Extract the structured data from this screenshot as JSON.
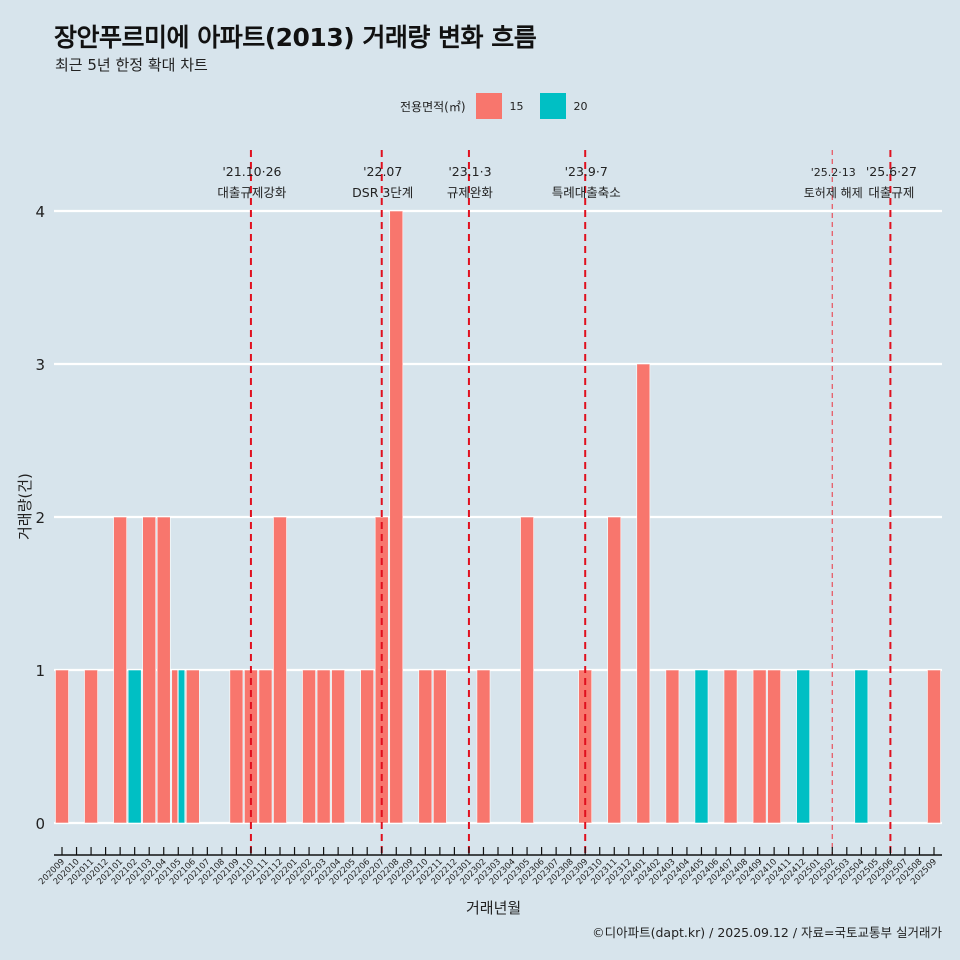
{
  "header": {
    "title": "장안푸르미에 아파트(2013) 거래량 변화 흐름",
    "subtitle": "최근 5년 한정 확대 차트"
  },
  "legend": {
    "title": "전용면적(㎡)",
    "items": [
      {
        "label": "15",
        "color": "#f8766d"
      },
      {
        "label": "20",
        "color": "#00bfc4"
      }
    ]
  },
  "caption": "©디아파트(dapt.kr) / 2025.09.12 / 자료=국토교통부 실거래가",
  "chart_data": {
    "type": "bar",
    "title": "장안푸르미에 아파트(2013) 거래량 변화 흐름",
    "subtitle": "최근 5년 한정 확대 차트",
    "xlabel": "거래년월",
    "ylabel": "거래량(건)",
    "ylim": [
      0,
      4
    ],
    "yticks": [
      0,
      1,
      2,
      3,
      4
    ],
    "grid": true,
    "legend_position": "top",
    "categories": [
      "202009",
      "202010",
      "202011",
      "202012",
      "202101",
      "202102",
      "202103",
      "202104",
      "202105",
      "202106",
      "202107",
      "202108",
      "202109",
      "202110",
      "202111",
      "202112",
      "202201",
      "202202",
      "202203",
      "202204",
      "202205",
      "202206",
      "202207",
      "202208",
      "202209",
      "202210",
      "202211",
      "202212",
      "202301",
      "202302",
      "202303",
      "202304",
      "202305",
      "202306",
      "202307",
      "202308",
      "202309",
      "202310",
      "202311",
      "202312",
      "202401",
      "202402",
      "202403",
      "202404",
      "202405",
      "202406",
      "202407",
      "202408",
      "202409",
      "202410",
      "202411",
      "202412",
      "202501",
      "202502",
      "202503",
      "202504",
      "202505",
      "202506",
      "202507",
      "202508",
      "202509"
    ],
    "series": [
      {
        "name": "15",
        "color": "#f8766d",
        "values": [
          1,
          0,
          1,
          0,
          2,
          0,
          2,
          2,
          1,
          1,
          0,
          0,
          1,
          1,
          1,
          2,
          0,
          1,
          1,
          1,
          0,
          1,
          2,
          4,
          0,
          1,
          1,
          0,
          0,
          1,
          0,
          0,
          2,
          0,
          0,
          0,
          1,
          0,
          2,
          0,
          3,
          0,
          1,
          0,
          0,
          0,
          1,
          0,
          1,
          1,
          0,
          0,
          0,
          0,
          0,
          0,
          0,
          0,
          0,
          0,
          1
        ]
      },
      {
        "name": "20",
        "color": "#00bfc4",
        "values": [
          0,
          0,
          0,
          0,
          0,
          1,
          0,
          0,
          1,
          0,
          0,
          0,
          0,
          0,
          0,
          0,
          0,
          0,
          0,
          0,
          0,
          0,
          0,
          0,
          0,
          0,
          0,
          0,
          0,
          0,
          0,
          0,
          0,
          0,
          0,
          0,
          0,
          0,
          0,
          0,
          0,
          0,
          0,
          0,
          1,
          0,
          0,
          0,
          0,
          0,
          0,
          1,
          0,
          0,
          0,
          1,
          0,
          0,
          0,
          0,
          0
        ]
      }
    ],
    "annotations": [
      {
        "month": "202110",
        "date": "'21.10·26",
        "label": "대출규제강화",
        "style": "bold"
      },
      {
        "month": "202207",
        "date": "'22.07",
        "label": "DSR 3단계",
        "style": "bold"
      },
      {
        "month": "202301",
        "date": "'23.1·3",
        "label": "규제완화",
        "style": "bold"
      },
      {
        "month": "202309",
        "date": "'23.9·7",
        "label": "특례대출축소",
        "style": "bold"
      },
      {
        "month": "202502",
        "date": "'25.2·13",
        "label": "토허제 해제",
        "style": "thin"
      },
      {
        "month": "202506",
        "date": "'25.6·27",
        "label": "대출규제",
        "style": "bold"
      }
    ]
  }
}
